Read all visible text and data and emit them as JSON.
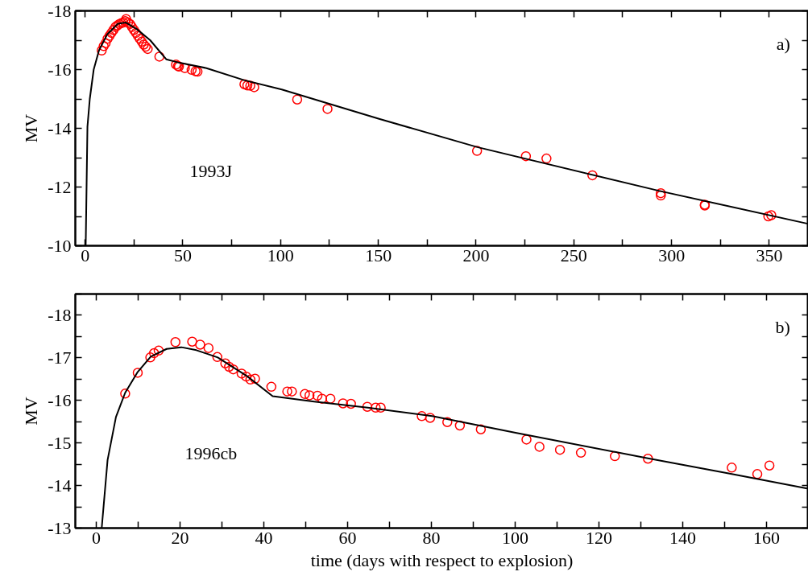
{
  "chart_data": [
    {
      "type": "scatter",
      "ylabel": "MV",
      "annotations": [
        "a)",
        "1993J"
      ],
      "xlim": [
        -5,
        370
      ],
      "ylim": [
        -10,
        -18
      ],
      "xticks": [
        0,
        {
          "value": 25,
          "label": null
        },
        50,
        {
          "value": 75,
          "label": null
        },
        100,
        {
          "value": 125,
          "label": null
        },
        150,
        {
          "value": 175,
          "label": null
        },
        200,
        {
          "value": 225,
          "label": null
        },
        250,
        {
          "value": 275,
          "label": null
        },
        300,
        {
          "value": 325,
          "label": null
        },
        350
      ],
      "yticks": [
        -18,
        {
          "value": -17,
          "label": null
        },
        -16,
        {
          "value": -15,
          "label": null
        },
        -14,
        {
          "value": -13,
          "label": null
        },
        -12,
        {
          "value": -11,
          "label": null
        },
        -10
      ],
      "grid": false,
      "series": [
        {
          "type": "scatter",
          "marker": "circle",
          "color": "#ff0000",
          "x": [
            8.5,
            9.5,
            10.5,
            11.5,
            12.5,
            13.5,
            14.5,
            15.5,
            16.5,
            17.5,
            18.5,
            19.5,
            20.5,
            21,
            22,
            23,
            24,
            25,
            26,
            27,
            28,
            29,
            30,
            31,
            32,
            38,
            46.5,
            47.5,
            48,
            51,
            54.5,
            56.5,
            57.5,
            81.5,
            83,
            84.5,
            86.5,
            108.5,
            124,
            200.5,
            225.5,
            236,
            259.5,
            294.5,
            294.5,
            317,
            317,
            349.5,
            351
          ],
          "values": [
            -16.65,
            -16.8,
            -16.9,
            -17.05,
            -17.15,
            -17.25,
            -17.35,
            -17.45,
            -17.5,
            -17.55,
            -17.58,
            -17.6,
            -17.65,
            -17.72,
            -17.6,
            -17.55,
            -17.45,
            -17.35,
            -17.25,
            -17.15,
            -17.05,
            -16.95,
            -16.85,
            -16.78,
            -16.7,
            -16.44,
            -16.17,
            -16.12,
            -16.1,
            -16.05,
            -15.99,
            -15.94,
            -15.93,
            -15.5,
            -15.46,
            -15.45,
            -15.4,
            -14.98,
            -14.66,
            -13.23,
            -13.05,
            -12.97,
            -12.4,
            -11.79,
            -11.71,
            -11.4,
            -11.37,
            -11.0,
            -11.04
          ]
        },
        {
          "type": "line",
          "marker": "none",
          "color": "#000000",
          "x": [
            0.3,
            0.4,
            1.2,
            2.4,
            4.4,
            7.1,
            11.3,
            16.8,
            20.9,
            26.4,
            33.3,
            41.5,
            48.4,
            62.1,
            81.3,
            100.6,
            150.4,
            200.6,
            294.3,
            369.7
          ],
          "values": [
            -10,
            -10.4,
            -14.05,
            -15.0,
            -16.0,
            -16.65,
            -17.2,
            -17.56,
            -17.6,
            -17.38,
            -17.0,
            -16.35,
            -16.23,
            -16.05,
            -15.64,
            -15.32,
            -14.32,
            -13.36,
            -11.86,
            -10.75
          ]
        }
      ]
    },
    {
      "type": "scatter",
      "ylabel": "MV",
      "xlabel": "time (days with respect to explosion)",
      "annotations": [
        "b)",
        "1996cb"
      ],
      "xlim": [
        -5,
        170
      ],
      "ylim": [
        -13,
        -18.5
      ],
      "xticks": [
        0,
        {
          "value": 10,
          "label": null
        },
        20,
        {
          "value": 30,
          "label": null
        },
        40,
        {
          "value": 50,
          "label": null
        },
        60,
        {
          "value": 70,
          "label": null
        },
        80,
        {
          "value": 90,
          "label": null
        },
        100,
        {
          "value": 110,
          "label": null
        },
        120,
        {
          "value": 130,
          "label": null
        },
        140,
        {
          "value": 150,
          "label": null
        },
        160
      ],
      "yticks": [
        {
          "value": -18.5,
          "label": null
        },
        -18,
        {
          "value": -17.5,
          "label": null
        },
        -17,
        {
          "value": -16.5,
          "label": null
        },
        -16,
        {
          "value": -15.5,
          "label": null
        },
        -15,
        {
          "value": -14.5,
          "label": null
        },
        -14,
        {
          "value": -13.5,
          "label": null
        },
        -13
      ],
      "grid": false,
      "series": [
        {
          "type": "scatter",
          "marker": "circle",
          "color": "#ff0000",
          "x": [
            6.9,
            9.9,
            12.9,
            13.8,
            14.9,
            18.9,
            22.9,
            24.8,
            26.8,
            28.9,
            30.8,
            31.7,
            32.7,
            34.7,
            35.8,
            36.8,
            37.9,
            41.8,
            45.6,
            46.7,
            49.8,
            50.9,
            52.8,
            53.9,
            55.9,
            58.9,
            60.8,
            64.7,
            66.7,
            67.9,
            77.7,
            79.7,
            83.8,
            86.8,
            91.8,
            102.7,
            105.8,
            110.7,
            115.7,
            123.8,
            131.7,
            151.7,
            157.8,
            160.7
          ],
          "values": [
            -16.16,
            -16.65,
            -17.01,
            -17.11,
            -17.17,
            -17.37,
            -17.38,
            -17.31,
            -17.23,
            -17.02,
            -16.87,
            -16.79,
            -16.73,
            -16.63,
            -16.56,
            -16.49,
            -16.51,
            -16.32,
            -16.21,
            -16.21,
            -16.15,
            -16.12,
            -16.11,
            -16.04,
            -16.04,
            -15.93,
            -15.92,
            -15.85,
            -15.83,
            -15.83,
            -15.63,
            -15.59,
            -15.49,
            -15.41,
            -15.32,
            -15.08,
            -14.91,
            -14.84,
            -14.77,
            -14.69,
            -14.63,
            -14.42,
            -14.27,
            -14.47
          ]
        },
        {
          "type": "line",
          "marker": "none",
          "color": "#000000",
          "x": [
            1.3,
            2.7,
            4.7,
            6.9,
            9.9,
            13,
            16.8,
            20.3,
            23.9,
            29,
            36,
            42.1,
            52,
            64.8,
            80.2,
            100.1,
            131.7,
            151.2,
            169.7
          ],
          "values": [
            -13,
            -14.6,
            -15.61,
            -16.18,
            -16.67,
            -17.03,
            -17.21,
            -17.25,
            -17.18,
            -17.01,
            -16.57,
            -16.1,
            -15.97,
            -15.83,
            -15.63,
            -15.24,
            -14.64,
            -14.28,
            -13.93
          ]
        }
      ]
    }
  ]
}
